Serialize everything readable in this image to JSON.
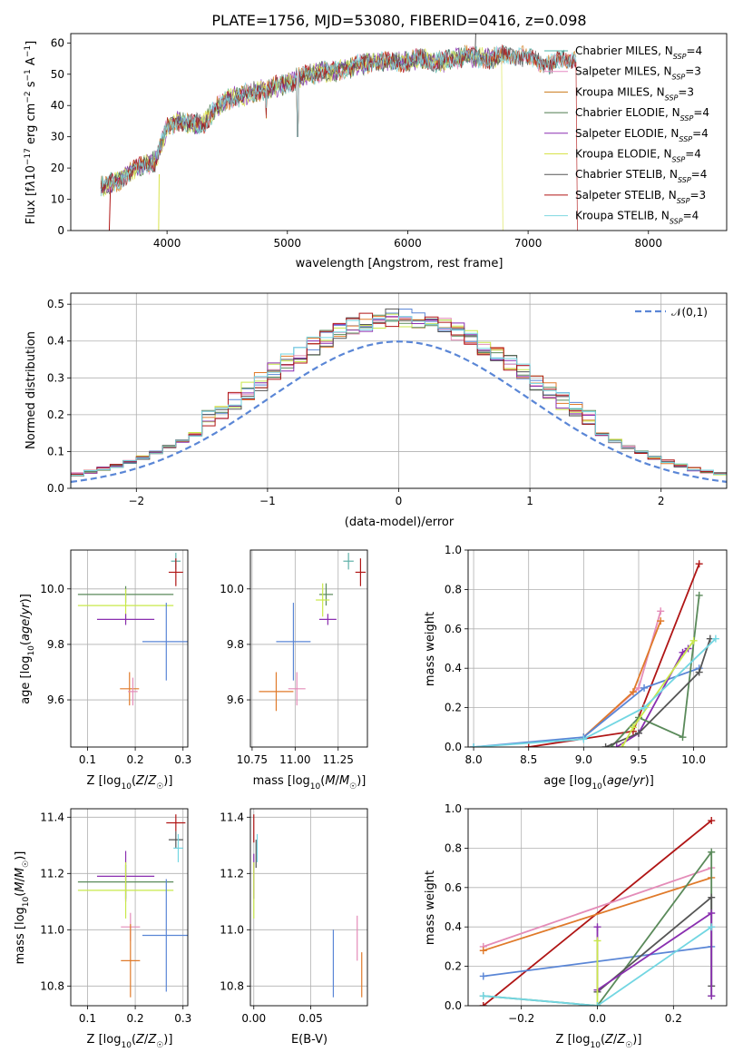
{
  "figure_title": "PLATE=1756, MJD=53080, FIBERID=0416, z=0.098",
  "colors": {
    "Chabrier MILES": "#4fb3a5",
    "Salpeter MILES": "#e58ac4",
    "Kroupa MILES": "#cc7a1a",
    "Chabrier ELODIE": "#4d7a4d",
    "Salpeter ELODIE": "#8a2fb0",
    "Kroupa ELODIE": "#d8e24a",
    "Chabrier STELIB": "#555555",
    "Salpeter STELIB": "#b01515",
    "Kroupa STELIB": "#7fd8e0",
    "blue": "#5a86d6",
    "orange": "#e07a2a",
    "green": "#5a8a5a",
    "pink": "#e48cb8",
    "lime": "#c9e84a",
    "teal": "#5fb0a8",
    "cyan": "#72d6e2"
  },
  "chart_data": [
    {
      "id": "spectrum",
      "type": "line",
      "title": "PLATE=1756, MJD=53080, FIBERID=0416, z=0.098",
      "xlabel": "wavelength [Angstrom, rest frame]",
      "ylabel": "Flux [f_λ 10^-17 erg cm^-2 s^-1 A^-1]",
      "xlim": [
        3200,
        8650
      ],
      "ylim": [
        0,
        63
      ],
      "xticks": [
        4000,
        5000,
        6000,
        7000,
        8000
      ],
      "yticks": [
        0,
        10,
        20,
        30,
        40,
        50,
        60
      ],
      "continuum": {
        "x": [
          3450,
          3600,
          3700,
          3800,
          3900,
          4000,
          4100,
          4200,
          4300,
          4400,
          4500,
          4600,
          4700,
          4800,
          4900,
          5000,
          5100,
          5200,
          5300,
          5400,
          5500,
          5600,
          5700,
          5800,
          5900,
          6000,
          6100,
          6200,
          6300,
          6400,
          6500,
          6600,
          6700,
          6800,
          6900,
          7000,
          7100,
          7200,
          7300,
          7400
        ],
        "y": [
          14,
          16,
          19,
          21,
          22,
          33,
          35,
          34,
          34,
          39,
          42,
          43,
          44,
          45,
          46,
          47,
          49,
          50,
          51,
          51,
          52,
          53,
          54,
          54,
          54,
          54,
          55,
          54,
          54,
          55,
          56,
          55,
          55,
          56,
          56,
          55,
          54,
          53,
          55,
          55
        ]
      },
      "dropouts_x": [
        3550,
        3930,
        5080,
        6800,
        7410
      ],
      "series": [
        {
          "name": "Chabrier MILES",
          "nssp": "4",
          "xmax": 7400
        },
        {
          "name": "Salpeter MILES",
          "nssp": "3",
          "xmax": 7400
        },
        {
          "name": "Kroupa MILES",
          "nssp": "3",
          "xmax": 7400
        },
        {
          "name": "Chabrier ELODIE",
          "nssp": "4",
          "xmax": 6780
        },
        {
          "name": "Salpeter ELODIE",
          "nssp": "4",
          "xmax": 6780
        },
        {
          "name": "Kroupa ELODIE",
          "nssp": "4",
          "xmax": 6780
        },
        {
          "name": "Chabrier STELIB",
          "nssp": "4",
          "xmax": 7400
        },
        {
          "name": "Salpeter STELIB",
          "nssp": "3",
          "xmax": 7400
        },
        {
          "name": "Kroupa STELIB",
          "nssp": "4",
          "xmax": 7400
        }
      ],
      "legend_position": "upper-right"
    },
    {
      "id": "residuals",
      "type": "histogram",
      "xlabel": "(data-model)/error",
      "ylabel": "Normed distribution",
      "xlim": [
        -2.5,
        2.5
      ],
      "ylim": [
        0,
        0.53
      ],
      "xticks": [
        -2,
        -1,
        0,
        1,
        2
      ],
      "yticks": [
        0.0,
        0.1,
        0.2,
        0.3,
        0.4,
        0.5
      ],
      "grid": true,
      "bin_edges_range": [
        -2.5,
        2.5
      ],
      "bins": 50,
      "reference_curve": {
        "name": "𝒩(0,1)",
        "style": "dashed",
        "color": "#5a86d6"
      },
      "legend_position": "top-right"
    },
    {
      "id": "age_vs_Z",
      "type": "errorbar",
      "xlabel": "Z [log10(Z/Z☉)]",
      "ylabel": "age [log10(age/yr)]",
      "xlim": [
        0.065,
        0.31
      ],
      "ylim": [
        9.43,
        10.14
      ],
      "xticks": [
        0.1,
        0.2,
        0.3
      ],
      "yticks": [
        9.6,
        9.8,
        10.0
      ],
      "grid": true,
      "points": [
        {
          "x": 0.285,
          "y": 10.1,
          "xerr": 0.01,
          "yerr": 0.03,
          "color": "teal"
        },
        {
          "x": 0.285,
          "y": 10.06,
          "xerr": 0.015,
          "yerr": 0.05,
          "color": "Salpeter STELIB"
        },
        {
          "x": 0.18,
          "y": 9.98,
          "xerr": 0.1,
          "yerr": 0.03,
          "color": "green"
        },
        {
          "x": 0.18,
          "y": 9.94,
          "xerr": 0.1,
          "yerr": 0.06,
          "color": "lime"
        },
        {
          "x": 0.18,
          "y": 9.89,
          "xerr": 0.06,
          "yerr": 0.02,
          "color": "Salpeter ELODIE"
        },
        {
          "x": 0.265,
          "y": 9.81,
          "xerr": 0.05,
          "yerr": 0.14,
          "color": "blue"
        },
        {
          "x": 0.188,
          "y": 9.64,
          "xerr": 0.02,
          "yerr": 0.06,
          "color": "orange"
        },
        {
          "x": 0.195,
          "y": 9.63,
          "xerr": 0.01,
          "yerr": 0.05,
          "color": "pink"
        }
      ]
    },
    {
      "id": "age_vs_mass",
      "type": "errorbar",
      "xlabel": "mass [log10(M/M☉)]",
      "ylabel": "",
      "xlim": [
        10.74,
        11.42
      ],
      "ylim": [
        9.43,
        10.14
      ],
      "xticks": [
        10.75,
        11.0,
        11.25
      ],
      "yticks": [
        9.6,
        9.8,
        10.0
      ],
      "grid": true,
      "points": [
        {
          "x": 11.31,
          "y": 10.1,
          "xerr": 0.03,
          "yerr": 0.03,
          "color": "teal"
        },
        {
          "x": 11.38,
          "y": 10.06,
          "xerr": 0.03,
          "yerr": 0.05,
          "color": "Salpeter STELIB"
        },
        {
          "x": 11.18,
          "y": 9.98,
          "xerr": 0.04,
          "yerr": 0.04,
          "color": "green"
        },
        {
          "x": 11.16,
          "y": 9.96,
          "xerr": 0.04,
          "yerr": 0.06,
          "color": "lime"
        },
        {
          "x": 11.19,
          "y": 9.89,
          "xerr": 0.05,
          "yerr": 0.02,
          "color": "Salpeter ELODIE"
        },
        {
          "x": 10.99,
          "y": 9.81,
          "xerr": 0.1,
          "yerr": 0.14,
          "color": "blue"
        },
        {
          "x": 10.89,
          "y": 9.63,
          "xerr": 0.1,
          "yerr": 0.07,
          "color": "orange"
        },
        {
          "x": 11.01,
          "y": 9.64,
          "xerr": 0.05,
          "yerr": 0.06,
          "color": "pink"
        }
      ]
    },
    {
      "id": "weight_vs_age",
      "type": "line",
      "xlabel": "age [log10(age/yr)]",
      "ylabel": "mass weight",
      "xlim": [
        7.95,
        10.3
      ],
      "ylim": [
        0,
        1.0
      ],
      "xticks": [
        8.0,
        8.5,
        9.0,
        9.5,
        10.0
      ],
      "yticks": [
        0.0,
        0.2,
        0.4,
        0.6,
        0.8,
        1.0
      ],
      "grid": true,
      "series": [
        {
          "color": "Salpeter STELIB",
          "x": [
            8.5,
            9.45,
            10.05
          ],
          "y": [
            0.0,
            0.08,
            0.93
          ]
        },
        {
          "color": "pink",
          "x": [
            9.0,
            9.5,
            9.7
          ],
          "y": [
            0.05,
            0.3,
            0.69
          ]
        },
        {
          "color": "orange",
          "x": [
            9.0,
            9.45,
            9.7
          ],
          "y": [
            0.05,
            0.28,
            0.64
          ]
        },
        {
          "color": "blue",
          "x": [
            8.0,
            9.0,
            9.55,
            10.05
          ],
          "y": [
            0.0,
            0.05,
            0.3,
            0.4
          ]
        },
        {
          "color": "Salpeter ELODIE",
          "x": [
            9.3,
            9.5,
            9.9,
            9.95
          ],
          "y": [
            0.0,
            0.07,
            0.48,
            0.5
          ]
        },
        {
          "color": "green",
          "x": [
            9.25,
            9.5,
            9.9,
            10.05
          ],
          "y": [
            0.0,
            0.15,
            0.05,
            0.77
          ]
        },
        {
          "color": "Chabrier STELIB",
          "x": [
            9.2,
            9.5,
            10.05,
            10.15
          ],
          "y": [
            0.0,
            0.07,
            0.38,
            0.55
          ]
        },
        {
          "color": "lime",
          "x": [
            9.35,
            9.45,
            10.0
          ],
          "y": [
            0.0,
            0.1,
            0.54
          ]
        },
        {
          "color": "cyan",
          "x": [
            8.0,
            9.0,
            9.55,
            10.2
          ],
          "y": [
            0.0,
            0.04,
            0.2,
            0.55
          ]
        }
      ]
    },
    {
      "id": "mass_vs_Z",
      "type": "errorbar",
      "xlabel": "Z [log10(Z/Z☉)]",
      "ylabel": "mass [log10(M/M☉)]",
      "xlim": [
        0.065,
        0.31
      ],
      "ylim": [
        10.73,
        11.43
      ],
      "xticks": [
        0.1,
        0.2,
        0.3
      ],
      "yticks": [
        10.8,
        11.0,
        11.2,
        11.4
      ],
      "grid": true,
      "points": [
        {
          "x": 0.285,
          "y": 11.38,
          "xerr": 0.02,
          "yerr": 0.03,
          "color": "Salpeter STELIB"
        },
        {
          "x": 0.285,
          "y": 11.32,
          "xerr": 0.015,
          "yerr": 0.03,
          "color": "Chabrier STELIB"
        },
        {
          "x": 0.29,
          "y": 11.29,
          "xerr": 0.01,
          "yerr": 0.05,
          "color": "cyan"
        },
        {
          "x": 0.18,
          "y": 11.19,
          "xerr": 0.06,
          "yerr": 0.09,
          "color": "Salpeter ELODIE"
        },
        {
          "x": 0.18,
          "y": 11.17,
          "xerr": 0.1,
          "yerr": 0.06,
          "color": "green"
        },
        {
          "x": 0.18,
          "y": 11.14,
          "xerr": 0.1,
          "yerr": 0.1,
          "color": "lime"
        },
        {
          "x": 0.19,
          "y": 11.01,
          "xerr": 0.02,
          "yerr": 0.05,
          "color": "pink"
        },
        {
          "x": 0.265,
          "y": 10.98,
          "xerr": 0.05,
          "yerr": 0.2,
          "color": "blue"
        },
        {
          "x": 0.19,
          "y": 10.89,
          "xerr": 0.02,
          "yerr": 0.13,
          "color": "orange"
        }
      ]
    },
    {
      "id": "mass_vs_ebv",
      "type": "errorbar",
      "xlabel": "E(B-V)",
      "ylabel": "",
      "xlim": [
        -0.003,
        0.1
      ],
      "ylim": [
        10.73,
        11.43
      ],
      "xticks": [
        0.0,
        0.05
      ],
      "yticks": [
        10.8,
        11.0,
        11.2,
        11.4
      ],
      "grid": true,
      "points": [
        {
          "x": 0.0,
          "y": 11.36,
          "xerr": 0.0,
          "yerr": 0.05,
          "color": "Salpeter STELIB"
        },
        {
          "x": 0.003,
          "y": 11.29,
          "xerr": 0.0,
          "yerr": 0.05,
          "color": "cyan"
        },
        {
          "x": 0.002,
          "y": 11.27,
          "xerr": 0.0,
          "yerr": 0.05,
          "color": "Chabrier STELIB"
        },
        {
          "x": 0.0,
          "y": 11.19,
          "xerr": 0.0,
          "yerr": 0.08,
          "color": "Salpeter ELODIE"
        },
        {
          "x": 0.0,
          "y": 11.14,
          "xerr": 0.0,
          "yerr": 0.1,
          "color": "lime"
        },
        {
          "x": 0.07,
          "y": 10.88,
          "xerr": 0.0,
          "yerr": 0.12,
          "color": "blue"
        },
        {
          "x": 0.091,
          "y": 10.97,
          "xerr": 0.0,
          "yerr": 0.08,
          "color": "pink"
        },
        {
          "x": 0.095,
          "y": 10.84,
          "xerr": 0.0,
          "yerr": 0.08,
          "color": "orange"
        }
      ]
    },
    {
      "id": "weight_vs_Z",
      "type": "line",
      "xlabel": "Z [log10(Z/Z☉)]",
      "ylabel": "mass weight",
      "xlim": [
        -0.34,
        0.34
      ],
      "ylim": [
        0,
        1.0
      ],
      "xticks": [
        -0.2,
        0.0,
        0.2
      ],
      "yticks": [
        0.0,
        0.2,
        0.4,
        0.6,
        0.8,
        1.0
      ],
      "grid": true,
      "series": [
        {
          "color": "Salpeter STELIB",
          "x": [
            -0.3,
            0.3
          ],
          "y": [
            0.0,
            0.94
          ]
        },
        {
          "color": "pink",
          "x": [
            -0.3,
            0.3
          ],
          "y": [
            0.3,
            0.7
          ]
        },
        {
          "color": "orange",
          "x": [
            -0.3,
            0.3
          ],
          "y": [
            0.28,
            0.65
          ]
        },
        {
          "color": "blue",
          "x": [
            -0.3,
            0.3
          ],
          "y": [
            0.15,
            0.3
          ]
        },
        {
          "color": "green",
          "x": [
            -0.3,
            0.0,
            0.3,
            0.3
          ],
          "y": [
            0.05,
            0.0,
            0.78,
            0.05
          ]
        },
        {
          "color": "Chabrier STELIB",
          "x": [
            0.0,
            0.3,
            0.3
          ],
          "y": [
            0.07,
            0.55,
            0.1
          ]
        },
        {
          "color": "Salpeter ELODIE",
          "x": [
            0.0,
            0.0,
            0.3,
            0.3
          ],
          "y": [
            0.4,
            0.08,
            0.47,
            0.05
          ]
        },
        {
          "color": "lime",
          "x": [
            0.0,
            0.0
          ],
          "y": [
            0.33,
            0.0
          ]
        },
        {
          "color": "cyan",
          "x": [
            -0.3,
            0.0,
            0.3
          ],
          "y": [
            0.05,
            0.0,
            0.4
          ]
        }
      ]
    }
  ]
}
